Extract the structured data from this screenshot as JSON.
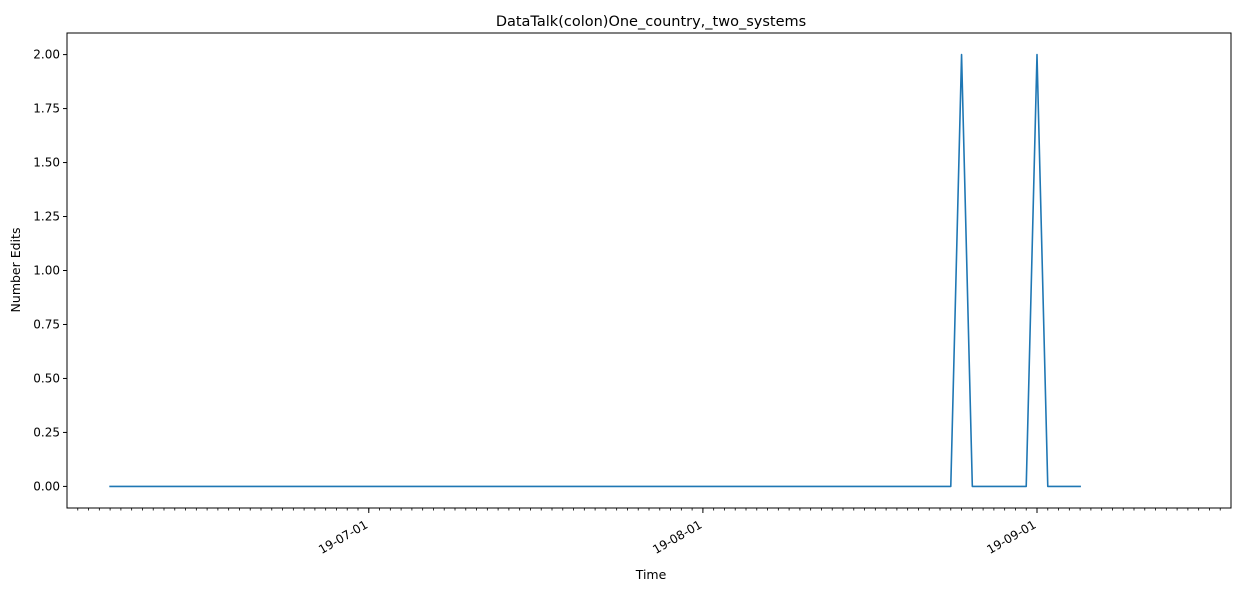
{
  "chart_data": {
    "type": "line",
    "title": "DataTalk(colon)One_country,_two_systems",
    "xlabel": "Time",
    "ylabel": "Number Edits",
    "x_axis_type": "date",
    "xlim": [
      "2019-06-03",
      "2019-09-19"
    ],
    "ylim": [
      -0.1,
      2.1
    ],
    "yticks": [
      0.0,
      0.25,
      0.5,
      0.75,
      1.0,
      1.25,
      1.5,
      1.75,
      2.0
    ],
    "ytick_labels": [
      "0.00",
      "0.25",
      "0.50",
      "0.75",
      "1.00",
      "1.25",
      "1.50",
      "1.75",
      "2.00"
    ],
    "xticks": [
      {
        "date": "2019-07-01",
        "label": "19-07-01"
      },
      {
        "date": "2019-08-01",
        "label": "19-08-01"
      },
      {
        "date": "2019-09-01",
        "label": "19-09-01"
      }
    ],
    "grid": false,
    "series": [
      {
        "color": "#1f77b4",
        "points": [
          {
            "x": "2019-06-07",
            "y": 0
          },
          {
            "x": "2019-08-24",
            "y": 0
          },
          {
            "x": "2019-08-25",
            "y": 2
          },
          {
            "x": "2019-08-26",
            "y": 0
          },
          {
            "x": "2019-08-31",
            "y": 0
          },
          {
            "x": "2019-09-01",
            "y": 2
          },
          {
            "x": "2019-09-02",
            "y": 0
          },
          {
            "x": "2019-09-05",
            "y": 0
          }
        ]
      }
    ]
  }
}
